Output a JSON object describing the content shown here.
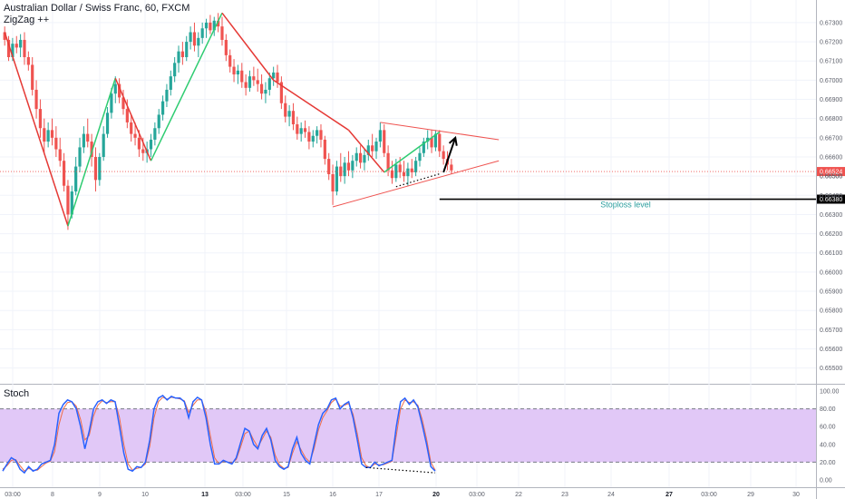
{
  "header": {
    "title": "Australian Dollar / Swiss Franc, 60, FXCM",
    "indicator": "ZigZag ++"
  },
  "stoch_panel": {
    "label": "Stoch"
  },
  "colors": {
    "up": "#26a69a",
    "down": "#ef5350",
    "zigzag_up": "#2ecc71",
    "zigzag_down": "#e53935",
    "triangle": "#ef5350",
    "current_price": "#ef5350",
    "stoploss": "#000000",
    "stoch_k": "#2962ff",
    "stoch_d": "#ef6c4a",
    "stoch_band": "#e1c8f7"
  },
  "chart_data": [
    {
      "type": "candlestick",
      "title": "Australian Dollar / Swiss Franc, 60, FXCM",
      "x_tick_labels": [
        "03:00",
        "8",
        "9",
        "10",
        "13",
        "03:00",
        "15",
        "16",
        "17",
        "20",
        "03:00",
        "22",
        "23",
        "24",
        "27",
        "03:00",
        "29",
        "30"
      ],
      "y_tick_labels": [
        "0.67300",
        "0.67200",
        "0.67100",
        "0.67000",
        "0.66900",
        "0.66800",
        "0.66700",
        "0.66600",
        "0.66500",
        "0.66400",
        "0.66300",
        "0.66200",
        "0.66100",
        "0.66000",
        "0.65900",
        "0.65800",
        "0.65700",
        "0.65600",
        "0.65500"
      ],
      "ylim": [
        0.6547,
        0.6738
      ],
      "current_price": {
        "label": "0.66524",
        "value": 0.66524
      },
      "secondary_price": {
        "label": "0.66500",
        "value": 0.665
      },
      "stoploss": {
        "label": "0.66380",
        "value": 0.6638,
        "text": "Stoploss level"
      },
      "zigzag": [
        {
          "bar": 0,
          "value": 0.6725
        },
        {
          "bar": 16,
          "value": 0.6624
        },
        {
          "bar": 28,
          "value": 0.6701
        },
        {
          "bar": 37,
          "value": 0.6658
        },
        {
          "bar": 55,
          "value": 0.6735
        },
        {
          "bar": 68,
          "value": 0.67
        },
        {
          "bar": 87,
          "value": 0.6674
        },
        {
          "bar": 96,
          "value": 0.6652
        },
        {
          "bar": 110,
          "value": 0.6673
        }
      ],
      "triangle": {
        "upper": [
          {
            "bar": 95,
            "value": 0.6678
          },
          {
            "bar": 125,
            "value": 0.6669
          }
        ],
        "lower": [
          {
            "bar": 83,
            "value": 0.6634
          },
          {
            "bar": 125,
            "value": 0.6658
          }
        ]
      },
      "arrow": {
        "from": {
          "bar": 111,
          "value": 0.6652
        },
        "to": {
          "bar": 114,
          "value": 0.667
        }
      },
      "candles": [
        {
          "o": 0.6725,
          "h": 0.6728,
          "l": 0.6718,
          "c": 0.6721
        },
        {
          "o": 0.6721,
          "h": 0.6723,
          "l": 0.671,
          "c": 0.6712
        },
        {
          "o": 0.6712,
          "h": 0.6722,
          "l": 0.671,
          "c": 0.6719
        },
        {
          "o": 0.6719,
          "h": 0.6723,
          "l": 0.6714,
          "c": 0.6717
        },
        {
          "o": 0.6717,
          "h": 0.6724,
          "l": 0.6712,
          "c": 0.6721
        },
        {
          "o": 0.6721,
          "h": 0.6725,
          "l": 0.6708,
          "c": 0.6712
        },
        {
          "o": 0.6712,
          "h": 0.6715,
          "l": 0.6705,
          "c": 0.6708
        },
        {
          "o": 0.6708,
          "h": 0.6712,
          "l": 0.6692,
          "c": 0.6695
        },
        {
          "o": 0.6695,
          "h": 0.67,
          "l": 0.668,
          "c": 0.6685
        },
        {
          "o": 0.6685,
          "h": 0.669,
          "l": 0.667,
          "c": 0.6675
        },
        {
          "o": 0.6675,
          "h": 0.668,
          "l": 0.6662,
          "c": 0.6668
        },
        {
          "o": 0.6668,
          "h": 0.6678,
          "l": 0.6665,
          "c": 0.6674
        },
        {
          "o": 0.6674,
          "h": 0.668,
          "l": 0.6666,
          "c": 0.667
        },
        {
          "o": 0.667,
          "h": 0.6676,
          "l": 0.666,
          "c": 0.6664
        },
        {
          "o": 0.6664,
          "h": 0.667,
          "l": 0.6655,
          "c": 0.6658
        },
        {
          "o": 0.6658,
          "h": 0.6662,
          "l": 0.6642,
          "c": 0.6645
        },
        {
          "o": 0.6645,
          "h": 0.6648,
          "l": 0.6622,
          "c": 0.663
        },
        {
          "o": 0.663,
          "h": 0.6645,
          "l": 0.6628,
          "c": 0.6642
        },
        {
          "o": 0.6642,
          "h": 0.666,
          "l": 0.664,
          "c": 0.6655
        },
        {
          "o": 0.6655,
          "h": 0.667,
          "l": 0.6652,
          "c": 0.6665
        },
        {
          "o": 0.6665,
          "h": 0.6676,
          "l": 0.6662,
          "c": 0.6672
        },
        {
          "o": 0.6672,
          "h": 0.668,
          "l": 0.6665,
          "c": 0.6668
        },
        {
          "o": 0.6668,
          "h": 0.6672,
          "l": 0.6655,
          "c": 0.666
        },
        {
          "o": 0.666,
          "h": 0.6665,
          "l": 0.6642,
          "c": 0.6648
        },
        {
          "o": 0.6648,
          "h": 0.6662,
          "l": 0.6645,
          "c": 0.666
        },
        {
          "o": 0.666,
          "h": 0.6676,
          "l": 0.6658,
          "c": 0.6672
        },
        {
          "o": 0.6672,
          "h": 0.6686,
          "l": 0.667,
          "c": 0.6683
        },
        {
          "o": 0.6683,
          "h": 0.6696,
          "l": 0.668,
          "c": 0.6693
        },
        {
          "o": 0.6693,
          "h": 0.6702,
          "l": 0.6688,
          "c": 0.6698
        },
        {
          "o": 0.6698,
          "h": 0.6701,
          "l": 0.6688,
          "c": 0.6691
        },
        {
          "o": 0.6691,
          "h": 0.6695,
          "l": 0.6682,
          "c": 0.6685
        },
        {
          "o": 0.6685,
          "h": 0.669,
          "l": 0.6675,
          "c": 0.6678
        },
        {
          "o": 0.6678,
          "h": 0.6682,
          "l": 0.6668,
          "c": 0.6672
        },
        {
          "o": 0.6672,
          "h": 0.6678,
          "l": 0.6666,
          "c": 0.667
        },
        {
          "o": 0.667,
          "h": 0.6674,
          "l": 0.666,
          "c": 0.6664
        },
        {
          "o": 0.6664,
          "h": 0.667,
          "l": 0.6658,
          "c": 0.6662
        },
        {
          "o": 0.6662,
          "h": 0.6668,
          "l": 0.6657,
          "c": 0.6664
        },
        {
          "o": 0.6664,
          "h": 0.6672,
          "l": 0.666,
          "c": 0.6669
        },
        {
          "o": 0.6669,
          "h": 0.6678,
          "l": 0.6666,
          "c": 0.6675
        },
        {
          "o": 0.6675,
          "h": 0.6685,
          "l": 0.6672,
          "c": 0.6682
        },
        {
          "o": 0.6682,
          "h": 0.6692,
          "l": 0.6679,
          "c": 0.6689
        },
        {
          "o": 0.6689,
          "h": 0.6698,
          "l": 0.6686,
          "c": 0.6695
        },
        {
          "o": 0.6695,
          "h": 0.6705,
          "l": 0.6692,
          "c": 0.6702
        },
        {
          "o": 0.6702,
          "h": 0.6712,
          "l": 0.6699,
          "c": 0.6709
        },
        {
          "o": 0.6709,
          "h": 0.6718,
          "l": 0.6704,
          "c": 0.6715
        },
        {
          "o": 0.6715,
          "h": 0.672,
          "l": 0.6708,
          "c": 0.6712
        },
        {
          "o": 0.6712,
          "h": 0.6723,
          "l": 0.671,
          "c": 0.672
        },
        {
          "o": 0.672,
          "h": 0.6728,
          "l": 0.6716,
          "c": 0.6725
        },
        {
          "o": 0.6725,
          "h": 0.673,
          "l": 0.6715,
          "c": 0.6718
        },
        {
          "o": 0.6718,
          "h": 0.6725,
          "l": 0.6712,
          "c": 0.6722
        },
        {
          "o": 0.6722,
          "h": 0.673,
          "l": 0.6719,
          "c": 0.6727
        },
        {
          "o": 0.6727,
          "h": 0.6732,
          "l": 0.6722,
          "c": 0.673
        },
        {
          "o": 0.673,
          "h": 0.6734,
          "l": 0.6724,
          "c": 0.6726
        },
        {
          "o": 0.6726,
          "h": 0.6733,
          "l": 0.6723,
          "c": 0.6731
        },
        {
          "o": 0.6731,
          "h": 0.6735,
          "l": 0.6725,
          "c": 0.6728
        },
        {
          "o": 0.6728,
          "h": 0.6733,
          "l": 0.6718,
          "c": 0.6721
        },
        {
          "o": 0.6721,
          "h": 0.6724,
          "l": 0.671,
          "c": 0.6713
        },
        {
          "o": 0.6713,
          "h": 0.6716,
          "l": 0.6704,
          "c": 0.6707
        },
        {
          "o": 0.6707,
          "h": 0.6711,
          "l": 0.6699,
          "c": 0.6703
        },
        {
          "o": 0.6703,
          "h": 0.6708,
          "l": 0.6698,
          "c": 0.6705
        },
        {
          "o": 0.6705,
          "h": 0.6709,
          "l": 0.6696,
          "c": 0.6699
        },
        {
          "o": 0.6699,
          "h": 0.6703,
          "l": 0.6692,
          "c": 0.6696
        },
        {
          "o": 0.6696,
          "h": 0.6705,
          "l": 0.6694,
          "c": 0.6702
        },
        {
          "o": 0.6702,
          "h": 0.6707,
          "l": 0.6697,
          "c": 0.67
        },
        {
          "o": 0.67,
          "h": 0.6706,
          "l": 0.6694,
          "c": 0.6698
        },
        {
          "o": 0.6698,
          "h": 0.6703,
          "l": 0.669,
          "c": 0.6693
        },
        {
          "o": 0.6693,
          "h": 0.6699,
          "l": 0.6688,
          "c": 0.6695
        },
        {
          "o": 0.6695,
          "h": 0.6704,
          "l": 0.6692,
          "c": 0.6701
        },
        {
          "o": 0.6701,
          "h": 0.6707,
          "l": 0.6697,
          "c": 0.6704
        },
        {
          "o": 0.6704,
          "h": 0.6708,
          "l": 0.6696,
          "c": 0.6699
        },
        {
          "o": 0.6699,
          "h": 0.6702,
          "l": 0.6685,
          "c": 0.6688
        },
        {
          "o": 0.6688,
          "h": 0.6692,
          "l": 0.6678,
          "c": 0.6681
        },
        {
          "o": 0.6681,
          "h": 0.6687,
          "l": 0.6676,
          "c": 0.6684
        },
        {
          "o": 0.6684,
          "h": 0.6688,
          "l": 0.6674,
          "c": 0.6677
        },
        {
          "o": 0.6677,
          "h": 0.6681,
          "l": 0.6669,
          "c": 0.6672
        },
        {
          "o": 0.6672,
          "h": 0.6678,
          "l": 0.6668,
          "c": 0.6675
        },
        {
          "o": 0.6675,
          "h": 0.6679,
          "l": 0.667,
          "c": 0.6673
        },
        {
          "o": 0.6673,
          "h": 0.6676,
          "l": 0.6664,
          "c": 0.6668
        },
        {
          "o": 0.6668,
          "h": 0.6674,
          "l": 0.6665,
          "c": 0.6671
        },
        {
          "o": 0.6671,
          "h": 0.6676,
          "l": 0.6667,
          "c": 0.6674
        },
        {
          "o": 0.6674,
          "h": 0.6677,
          "l": 0.6665,
          "c": 0.6669
        },
        {
          "o": 0.6669,
          "h": 0.6671,
          "l": 0.6656,
          "c": 0.6659
        },
        {
          "o": 0.6659,
          "h": 0.6662,
          "l": 0.6648,
          "c": 0.6651
        },
        {
          "o": 0.6651,
          "h": 0.6656,
          "l": 0.6635,
          "c": 0.6642
        },
        {
          "o": 0.6642,
          "h": 0.6658,
          "l": 0.664,
          "c": 0.6655
        },
        {
          "o": 0.6655,
          "h": 0.6662,
          "l": 0.6647,
          "c": 0.665
        },
        {
          "o": 0.665,
          "h": 0.666,
          "l": 0.6646,
          "c": 0.6657
        },
        {
          "o": 0.6657,
          "h": 0.6663,
          "l": 0.665,
          "c": 0.6653
        },
        {
          "o": 0.6653,
          "h": 0.6661,
          "l": 0.6649,
          "c": 0.6658
        },
        {
          "o": 0.6658,
          "h": 0.6665,
          "l": 0.6655,
          "c": 0.6662
        },
        {
          "o": 0.6662,
          "h": 0.6666,
          "l": 0.6654,
          "c": 0.6657
        },
        {
          "o": 0.6657,
          "h": 0.6664,
          "l": 0.6653,
          "c": 0.6661
        },
        {
          "o": 0.6661,
          "h": 0.6669,
          "l": 0.6658,
          "c": 0.6666
        },
        {
          "o": 0.6666,
          "h": 0.6672,
          "l": 0.666,
          "c": 0.6663
        },
        {
          "o": 0.6663,
          "h": 0.667,
          "l": 0.6659,
          "c": 0.6668
        },
        {
          "o": 0.6668,
          "h": 0.6678,
          "l": 0.6665,
          "c": 0.6674
        },
        {
          "o": 0.6674,
          "h": 0.6677,
          "l": 0.666,
          "c": 0.6662
        },
        {
          "o": 0.6662,
          "h": 0.6666,
          "l": 0.665,
          "c": 0.6653
        },
        {
          "o": 0.6653,
          "h": 0.6658,
          "l": 0.6646,
          "c": 0.6649
        },
        {
          "o": 0.6649,
          "h": 0.6659,
          "l": 0.6647,
          "c": 0.6656
        },
        {
          "o": 0.6656,
          "h": 0.666,
          "l": 0.6649,
          "c": 0.6652
        },
        {
          "o": 0.6652,
          "h": 0.6658,
          "l": 0.6647,
          "c": 0.665
        },
        {
          "o": 0.665,
          "h": 0.6657,
          "l": 0.6645,
          "c": 0.6654
        },
        {
          "o": 0.6654,
          "h": 0.6659,
          "l": 0.6649,
          "c": 0.6652
        },
        {
          "o": 0.6652,
          "h": 0.666,
          "l": 0.665,
          "c": 0.6658
        },
        {
          "o": 0.6658,
          "h": 0.6665,
          "l": 0.6655,
          "c": 0.6662
        },
        {
          "o": 0.6662,
          "h": 0.667,
          "l": 0.666,
          "c": 0.6668
        },
        {
          "o": 0.6668,
          "h": 0.6674,
          "l": 0.6664,
          "c": 0.667
        },
        {
          "o": 0.667,
          "h": 0.6674,
          "l": 0.6662,
          "c": 0.6665
        },
        {
          "o": 0.6665,
          "h": 0.6674,
          "l": 0.6663,
          "c": 0.6672
        },
        {
          "o": 0.6672,
          "h": 0.6674,
          "l": 0.666,
          "c": 0.6663
        },
        {
          "o": 0.6663,
          "h": 0.6666,
          "l": 0.6656,
          "c": 0.6659
        },
        {
          "o": 0.6659,
          "h": 0.6663,
          "l": 0.6653,
          "c": 0.6656
        },
        {
          "o": 0.6656,
          "h": 0.6659,
          "l": 0.6651,
          "c": 0.6653
        }
      ]
    },
    {
      "type": "line",
      "title": "Stoch",
      "y_tick_labels": [
        "100.00",
        "80.00",
        "60.00",
        "40.00",
        "20.00",
        "0.00"
      ],
      "ylim": [
        0,
        100
      ],
      "band": [
        20,
        80
      ],
      "series": [
        {
          "values": [
            10,
            18,
            25,
            22,
            12,
            8,
            15,
            10,
            12,
            18,
            20,
            22,
            40,
            75,
            85,
            90,
            88,
            80,
            60,
            35,
            55,
            80,
            88,
            90,
            86,
            90,
            88,
            60,
            30,
            12,
            10,
            15,
            14,
            20,
            45,
            80,
            92,
            95,
            90,
            94,
            92,
            92,
            88,
            70,
            88,
            93,
            90,
            70,
            40,
            18,
            18,
            22,
            20,
            18,
            25,
            42,
            58,
            55,
            40,
            35,
            50,
            58,
            45,
            22,
            15,
            12,
            15,
            35,
            48,
            30,
            22,
            18,
            40,
            62,
            75,
            80,
            90,
            92,
            80,
            85,
            88,
            70,
            45,
            18,
            14,
            14,
            20,
            16,
            18,
            20,
            22,
            60,
            88,
            92,
            85,
            90,
            82,
            62,
            40,
            15,
            10
          ]
        },
        {
          "values": [
            12,
            16,
            22,
            23,
            16,
            10,
            13,
            11,
            11,
            15,
            19,
            21,
            32,
            62,
            80,
            87,
            88,
            83,
            68,
            45,
            50,
            72,
            84,
            89,
            87,
            88,
            88,
            70,
            40,
            18,
            11,
            13,
            14,
            18,
            38,
            70,
            88,
            93,
            91,
            93,
            92,
            91,
            89,
            76,
            84,
            90,
            90,
            76,
            50,
            25,
            18,
            21,
            20,
            19,
            23,
            37,
            52,
            55,
            45,
            37,
            46,
            55,
            48,
            28,
            17,
            13,
            14,
            30,
            43,
            34,
            25,
            20,
            35,
            56,
            70,
            78,
            87,
            91,
            83,
            84,
            86,
            74,
            52,
            25,
            16,
            14,
            18,
            17,
            17,
            19,
            21,
            50,
            80,
            90,
            87,
            88,
            84,
            68,
            46,
            20,
            11
          ]
        }
      ]
    }
  ]
}
